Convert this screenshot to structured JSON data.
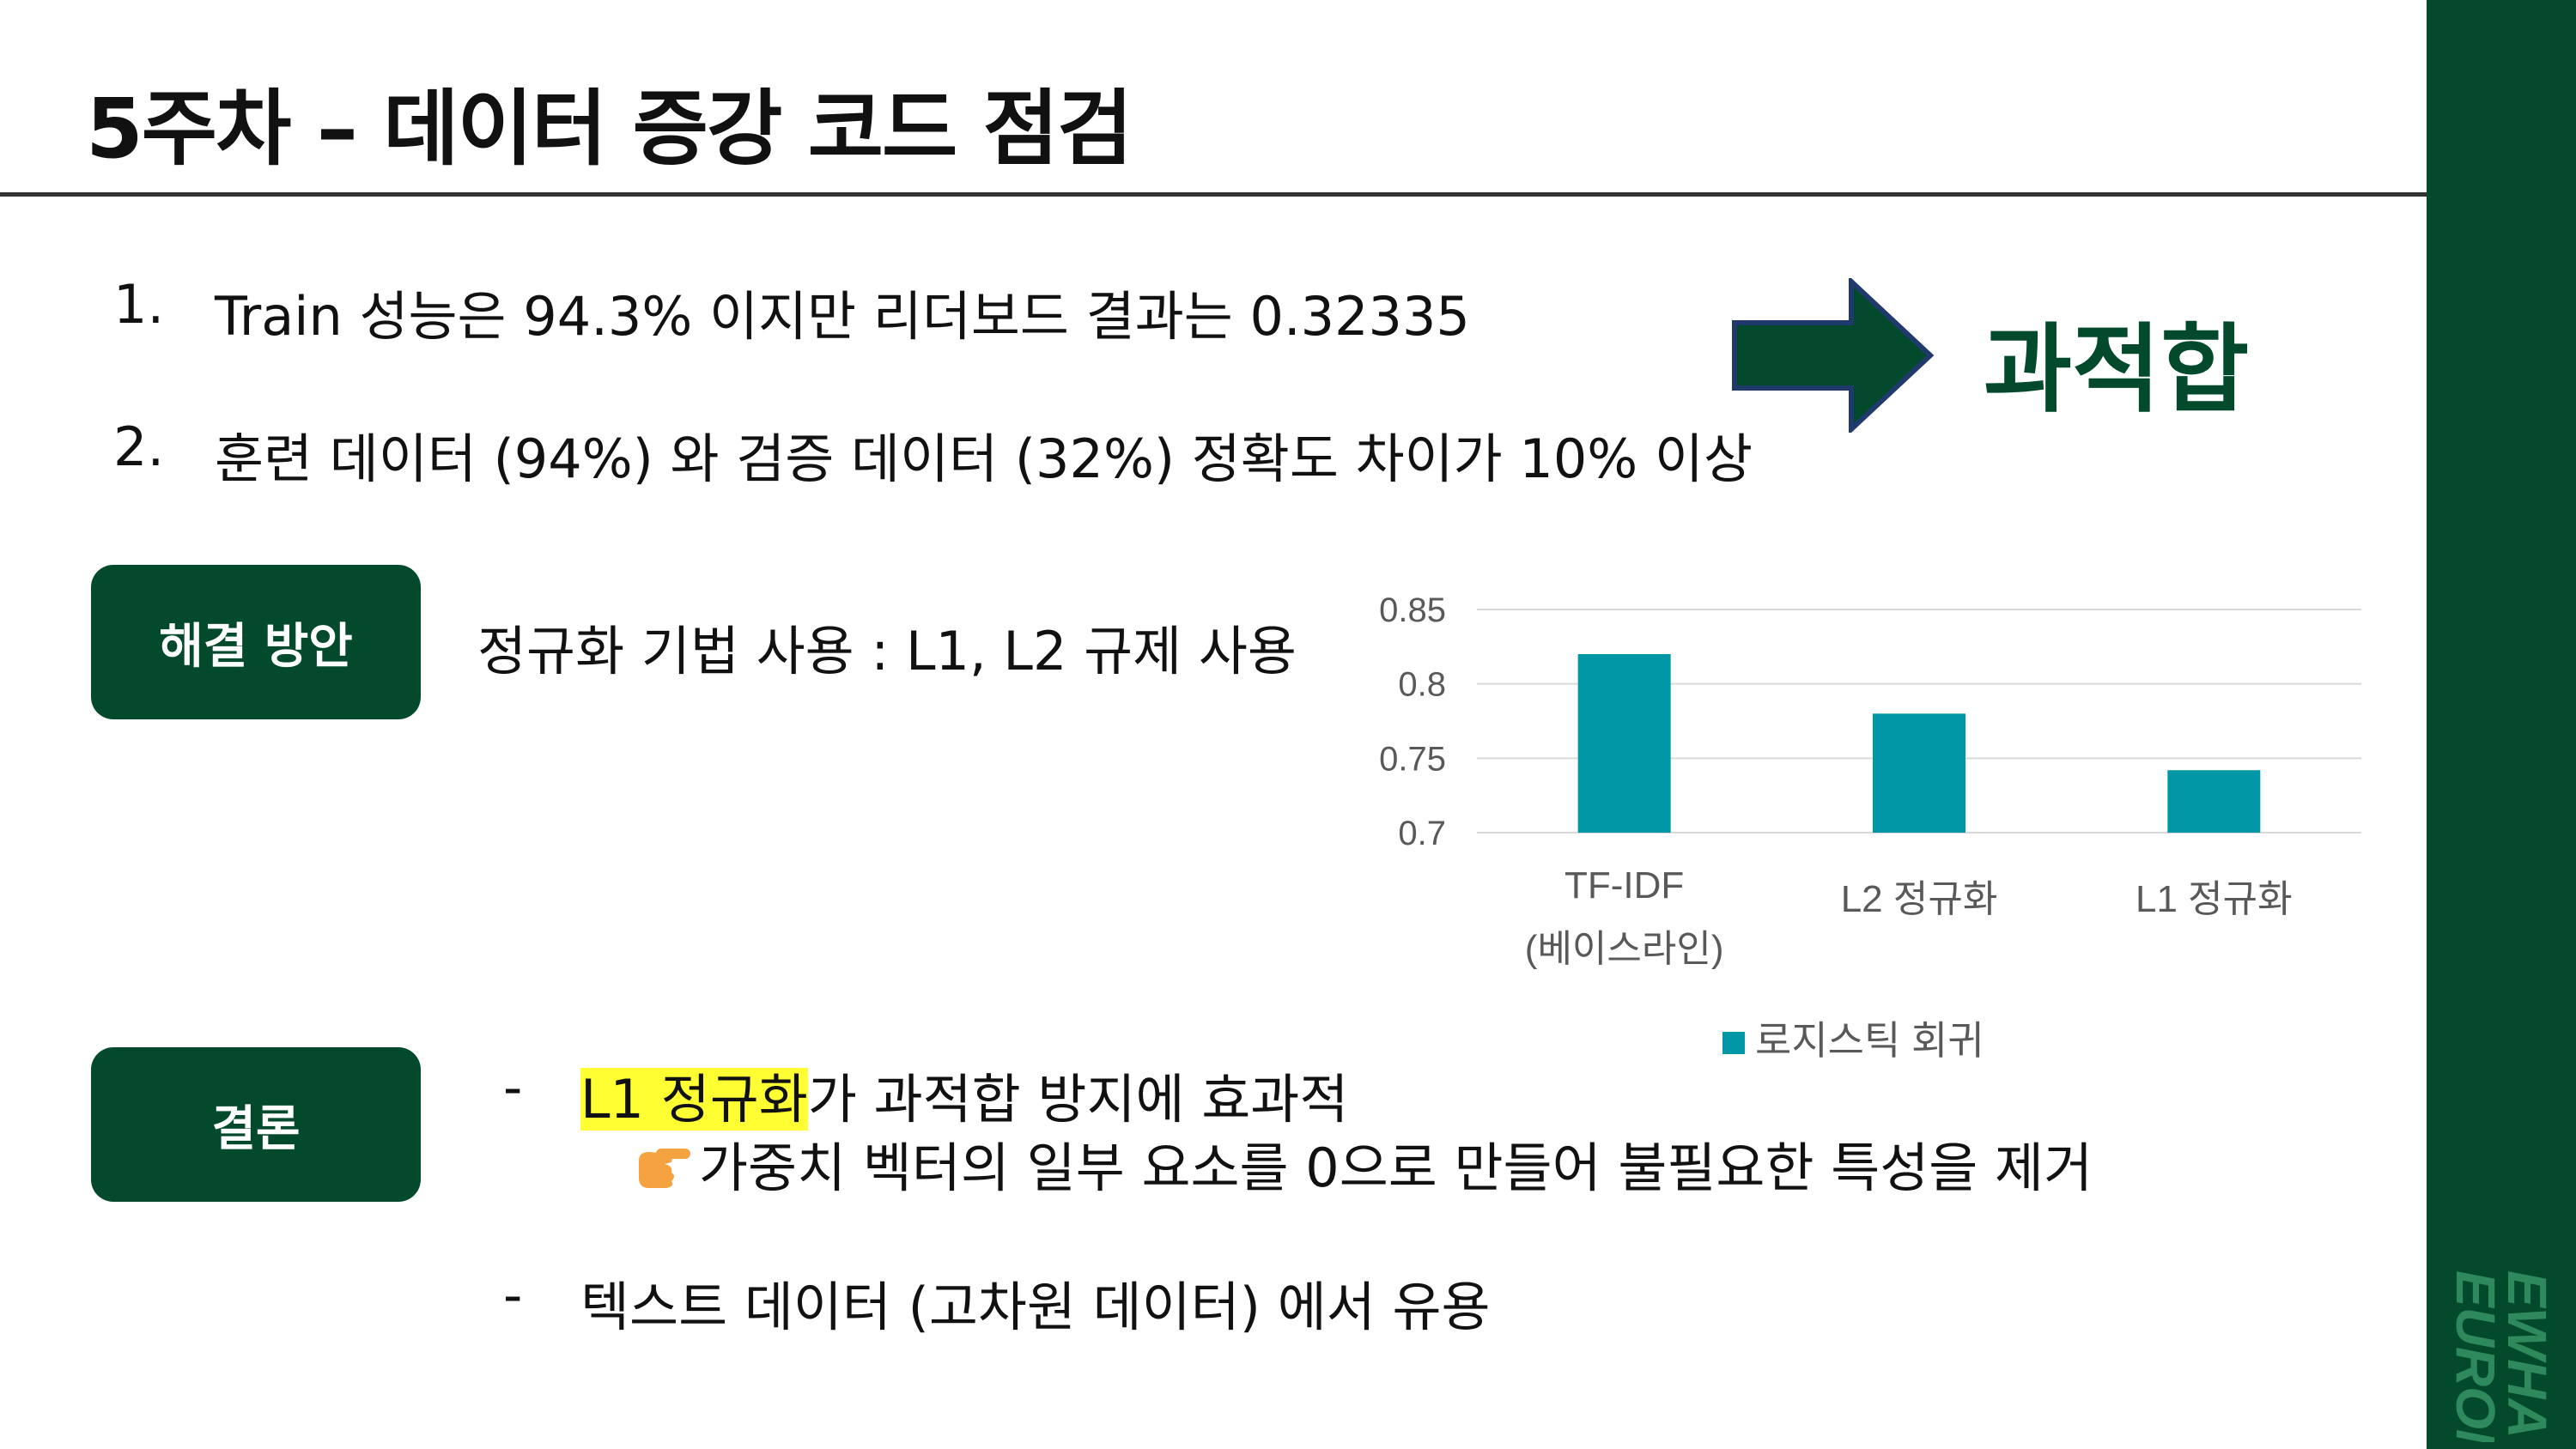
{
  "title": "5주차 – 데이터 증강 코드 점검",
  "findings": [
    {
      "num": "1.",
      "text": "Train 성능은 94.3% 이지만 리더보드 결과는 0.32335"
    },
    {
      "num": "2.",
      "text": "훈련 데이터 (94%) 와 검증 데이터 (32%) 정확도 차이가 10% 이상"
    }
  ],
  "diagnosis": "과적합",
  "solution": {
    "label": "해결 방안",
    "text": "정규화 기법 사용 : L1, L2 규제 사용"
  },
  "conclusion": {
    "label": "결론",
    "bullets": [
      {
        "dash": "-",
        "highlight": "L1 정규화",
        "text": "가 과적합 방지에 효과적"
      },
      {
        "dash": "-",
        "text": "텍스트 데이터 (고차원 데이터) 에서 유용"
      }
    ],
    "sub_icon": "pointing-hand-icon",
    "sub_text": "가중치 벡터의 일부 요소를 0으로 만들어 불필요한 특성을 제거"
  },
  "colors": {
    "brand_green": "#034a2d",
    "bar": "#0297a7",
    "highlight": "#ffff33"
  },
  "chart_data": {
    "type": "bar",
    "categories": [
      "TF-IDF (베이스라인)",
      "L2 정규화",
      "L1 정규화"
    ],
    "category_lines": [
      [
        "TF-IDF",
        "(베이스라인)"
      ],
      [
        "L2 정규화"
      ],
      [
        "L1 정규화"
      ]
    ],
    "series": [
      {
        "name": "로지스틱 회귀",
        "values": [
          0.82,
          0.78,
          0.742
        ]
      }
    ],
    "ylim": [
      0.7,
      0.85
    ],
    "yticks": [
      "0.85",
      "0.8",
      "0.75",
      "0.7"
    ],
    "ytick_values": [
      0.85,
      0.8,
      0.75,
      0.7
    ],
    "grid": true,
    "legend_position": "bottom"
  },
  "logo": {
    "text": "EWHA EURON"
  }
}
